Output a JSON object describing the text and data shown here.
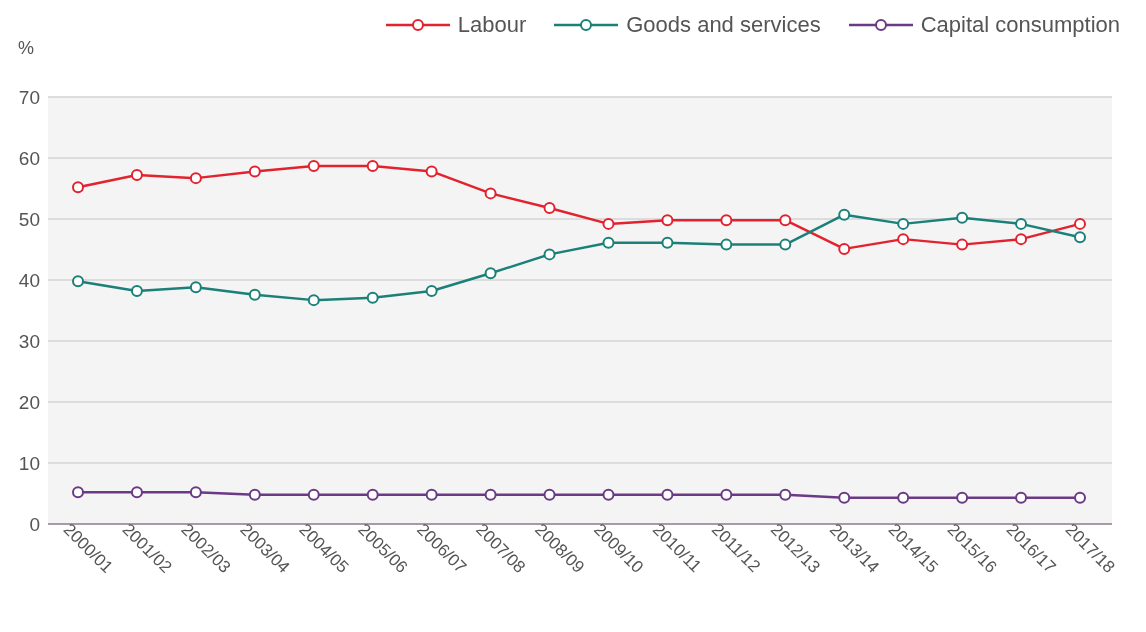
{
  "chart_data": {
    "type": "line",
    "ylabel": "%",
    "categories": [
      "2000/01",
      "2001/02",
      "2002/03",
      "2003/04",
      "2004/05",
      "2005/06",
      "2006/07",
      "2007/08",
      "2008/09",
      "2009/10",
      "2010/11",
      "2011/12",
      "2012/13",
      "2013/14",
      "2014/15",
      "2015/16",
      "2016/17",
      "2017/18"
    ],
    "series": [
      {
        "name": "Labour",
        "color": "#e2232f",
        "values": [
          55.2,
          57.2,
          56.7,
          57.8,
          58.7,
          58.7,
          57.8,
          54.2,
          51.8,
          49.2,
          49.8,
          49.8,
          49.8,
          45.1,
          46.7,
          45.8,
          46.7,
          49.2
        ]
      },
      {
        "name": "Goods and services",
        "color": "#1a8078",
        "values": [
          39.8,
          38.2,
          38.8,
          37.6,
          36.7,
          37.1,
          38.2,
          41.1,
          44.2,
          46.1,
          46.1,
          45.8,
          45.8,
          50.7,
          49.2,
          50.2,
          49.2,
          47.0
        ]
      },
      {
        "name": "Capital consumption",
        "color": "#6b3a84",
        "values": [
          5.2,
          5.2,
          5.2,
          4.8,
          4.8,
          4.8,
          4.8,
          4.8,
          4.8,
          4.8,
          4.8,
          4.8,
          4.8,
          4.3,
          4.3,
          4.3,
          4.3,
          4.3
        ]
      }
    ],
    "ylim": [
      0,
      70
    ],
    "yticks": [
      0,
      10,
      20,
      30,
      40,
      50,
      60,
      70
    ],
    "grid": "y",
    "legend": "top right",
    "marker": "circle",
    "line_style": "solid"
  }
}
